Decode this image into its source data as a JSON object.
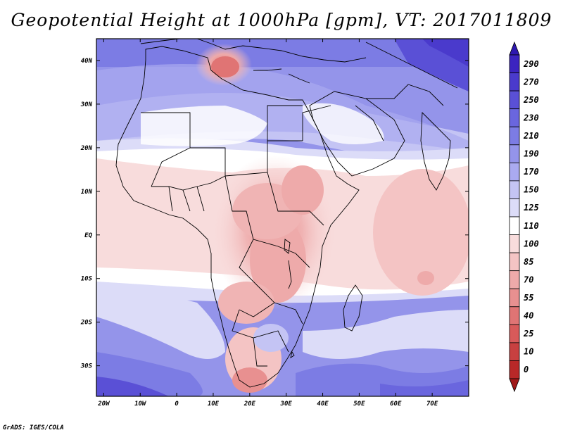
{
  "title": "Geopotential Height at 1000hPa [gpm], VT: 2017011809",
  "credit": "GrADS: IGES/COLA",
  "map": {
    "lat_range": [
      -37,
      45
    ],
    "lon_range": [
      -22,
      80
    ],
    "lat_ticks": [
      {
        "value": 40,
        "label": "40N"
      },
      {
        "value": 30,
        "label": "30N"
      },
      {
        "value": 20,
        "label": "20N"
      },
      {
        "value": 10,
        "label": "10N"
      },
      {
        "value": 0,
        "label": "EQ"
      },
      {
        "value": -10,
        "label": "10S"
      },
      {
        "value": -20,
        "label": "20S"
      },
      {
        "value": -30,
        "label": "30S"
      }
    ],
    "lon_ticks": [
      {
        "value": -20,
        "label": "20W"
      },
      {
        "value": -10,
        "label": "10W"
      },
      {
        "value": 0,
        "label": "0"
      },
      {
        "value": 10,
        "label": "10E"
      },
      {
        "value": 20,
        "label": "20E"
      },
      {
        "value": 30,
        "label": "30E"
      },
      {
        "value": 40,
        "label": "40E"
      },
      {
        "value": 50,
        "label": "50E"
      },
      {
        "value": 60,
        "label": "60E"
      },
      {
        "value": 70,
        "label": "70E"
      }
    ]
  },
  "colorbar": {
    "levels": [
      {
        "label": "290",
        "color": "#3c24c0"
      },
      {
        "label": "270",
        "color": "#4a3acc"
      },
      {
        "label": "250",
        "color": "#5a50d6"
      },
      {
        "label": "230",
        "color": "#6a66de"
      },
      {
        "label": "210",
        "color": "#7c7ce4"
      },
      {
        "label": "190",
        "color": "#9494ea"
      },
      {
        "label": "170",
        "color": "#aaaaf0"
      },
      {
        "label": "150",
        "color": "#c4c4f4"
      },
      {
        "label": "125",
        "color": "#dcdcf8"
      },
      {
        "label": "110",
        "color": "#ffffff"
      },
      {
        "label": "100",
        "color": "#f8dcdc"
      },
      {
        "label": "85",
        "color": "#f4c4c4"
      },
      {
        "label": "70",
        "color": "#eeaaaa"
      },
      {
        "label": "55",
        "color": "#e89090"
      },
      {
        "label": "40",
        "color": "#e07474"
      },
      {
        "label": "25",
        "color": "#d85a5a"
      },
      {
        "label": "10",
        "color": "#c84040"
      },
      {
        "label": "0",
        "color": "#b82828"
      }
    ],
    "top_color": "#2e18b0",
    "bottom_color": "#a01818"
  }
}
